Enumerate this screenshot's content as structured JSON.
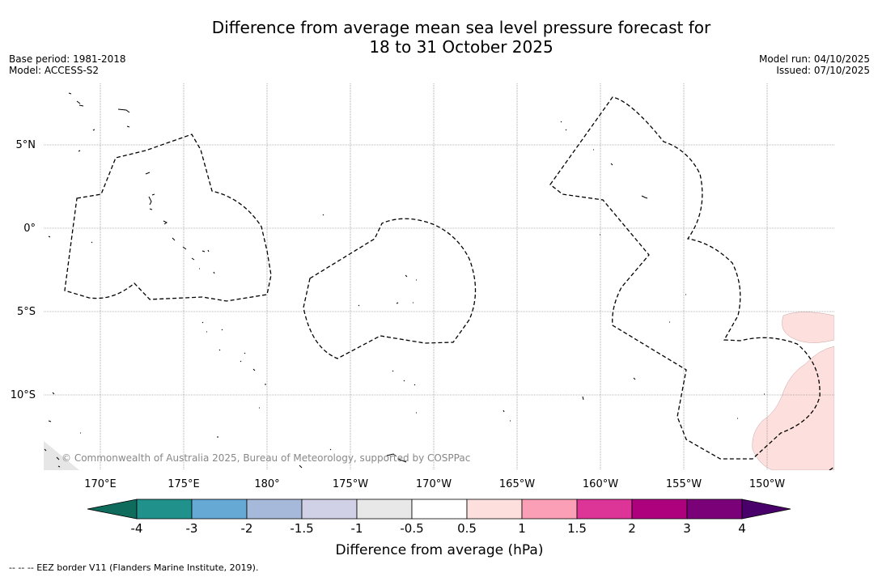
{
  "header": {
    "title_line1": "Difference from average mean sea level pressure forecast for",
    "title_line2": "18 to 31 October 2025",
    "base_period": "Base period: 1981-2018",
    "model": "Model: ACCESS-S2",
    "model_run": "Model run: 04/10/2025",
    "issued": "Issued: 07/10/2025"
  },
  "map": {
    "lat_labels": [
      "5°N",
      "0°",
      "5°S",
      "10°S"
    ],
    "lon_labels": [
      "170°E",
      "175°E",
      "180°",
      "175°W",
      "170°W",
      "165°W",
      "160°W",
      "155°W",
      "150°W"
    ],
    "copyright": "© Commonwealth of Australia 2025, Bureau of Meteorology, supported by COSPPac",
    "colors": {
      "land_grey": "#e6e6e6",
      "positive_0_5_1": "#fde0dd",
      "gridline": "#777777",
      "eez": "#000000"
    }
  },
  "colorbar": {
    "label": "Difference from average (hPa)",
    "ticks": [
      "-4",
      "-3",
      "-2",
      "-1.5",
      "-1",
      "-0.5",
      "0.5",
      "1",
      "1.5",
      "2",
      "3",
      "4"
    ],
    "colors": [
      "#0f6b5c",
      "#21918c",
      "#66a9d4",
      "#a7b9db",
      "#d0d1e6",
      "#e8e8e8",
      "#ffffff",
      "#fde0dd",
      "#fa9fb5",
      "#dd3497",
      "#ae017e",
      "#7a0177",
      "#49006a"
    ]
  },
  "footer": {
    "legend_text": "--  --  -- EEZ border V11 (Flanders Marine Institute, 2019)."
  }
}
